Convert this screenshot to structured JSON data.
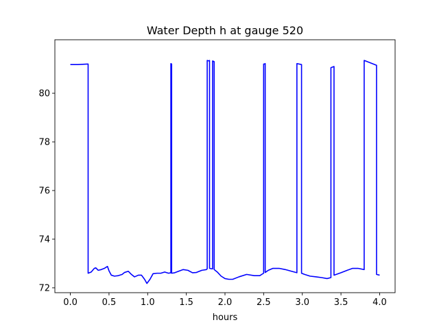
{
  "chart_data": {
    "type": "line",
    "title": "Water Depth h at gauge 520",
    "xlabel": "hours",
    "ylabel": "",
    "xlim": [
      -0.2,
      4.2
    ],
    "ylim": [
      71.8,
      82.2
    ],
    "x_ticks": [
      0.0,
      0.5,
      1.0,
      1.5,
      2.0,
      2.5,
      3.0,
      3.5,
      4.0
    ],
    "x_tick_labels": [
      "0.0",
      "0.5",
      "1.0",
      "1.5",
      "2.0",
      "2.5",
      "3.0",
      "3.5",
      "4.0"
    ],
    "y_ticks": [
      72,
      74,
      76,
      78,
      80
    ],
    "y_tick_labels": [
      "72",
      "74",
      "76",
      "78",
      "80"
    ],
    "grid": false,
    "legend": "none",
    "line_color": "#0000ff",
    "series": [
      {
        "x": [
          0.0,
          0.1,
          0.22,
          0.23,
          0.23,
          0.27,
          0.31,
          0.33,
          0.36,
          0.4,
          0.44,
          0.48,
          0.5,
          0.53,
          0.57,
          0.62,
          0.67,
          0.7,
          0.75,
          0.79,
          0.83,
          0.88,
          0.92,
          0.96,
          0.99,
          1.03,
          1.07,
          1.12,
          1.17,
          1.22,
          1.27,
          1.3,
          1.3,
          1.31,
          1.31,
          1.35,
          1.4,
          1.46,
          1.52,
          1.58,
          1.63,
          1.7,
          1.76,
          1.77,
          1.77,
          1.79,
          1.8,
          1.8,
          1.83,
          1.84,
          1.84,
          1.86,
          1.86,
          1.9,
          1.95,
          2.0,
          2.05,
          2.1,
          2.18,
          2.28,
          2.38,
          2.45,
          2.5,
          2.5,
          2.51,
          2.52,
          2.52,
          2.56,
          2.62,
          2.7,
          2.78,
          2.86,
          2.93,
          2.93,
          2.99,
          2.99,
          3.03,
          3.1,
          3.18,
          3.25,
          3.32,
          3.37,
          3.37,
          3.41,
          3.41,
          3.5,
          3.58,
          3.65,
          3.72,
          3.8,
          3.8,
          3.96,
          3.96,
          4.0
        ],
        "y": [
          81.18,
          81.18,
          81.2,
          81.2,
          72.6,
          72.65,
          72.8,
          72.82,
          72.72,
          72.75,
          72.8,
          72.88,
          72.7,
          72.52,
          72.48,
          72.5,
          72.55,
          72.63,
          72.68,
          72.55,
          72.45,
          72.52,
          72.52,
          72.35,
          72.18,
          72.35,
          72.58,
          72.6,
          72.6,
          72.65,
          72.6,
          72.62,
          81.22,
          81.2,
          72.6,
          72.62,
          72.68,
          72.75,
          72.72,
          72.62,
          72.63,
          72.72,
          72.75,
          72.78,
          81.35,
          81.33,
          81.35,
          72.8,
          72.78,
          72.78,
          81.33,
          81.3,
          72.75,
          72.65,
          72.48,
          72.38,
          72.35,
          72.35,
          72.45,
          72.55,
          72.5,
          72.5,
          72.6,
          81.2,
          81.2,
          81.22,
          72.63,
          72.72,
          72.8,
          72.8,
          72.75,
          72.68,
          72.62,
          81.22,
          81.18,
          72.6,
          72.55,
          72.48,
          72.45,
          72.42,
          72.38,
          72.42,
          81.05,
          81.1,
          72.52,
          72.62,
          72.72,
          72.8,
          72.8,
          72.75,
          81.35,
          81.15,
          72.55,
          72.52
        ]
      }
    ]
  }
}
